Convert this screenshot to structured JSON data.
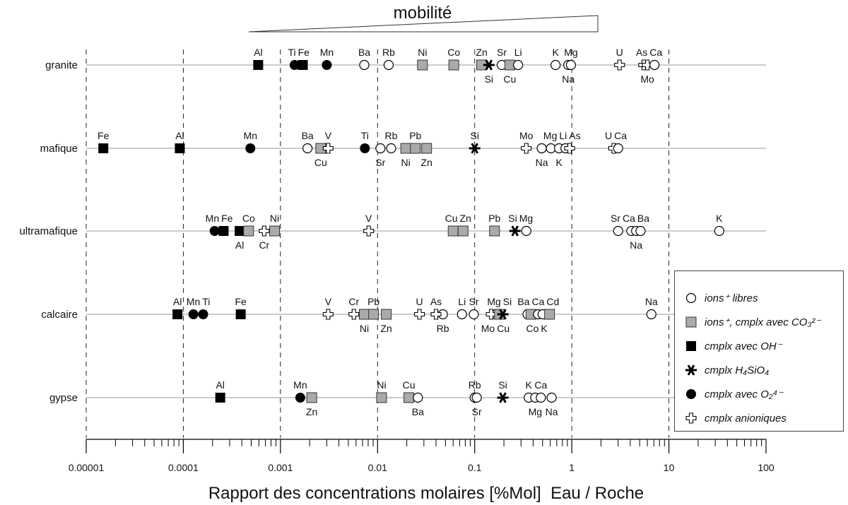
{
  "chart_data": {
    "type": "scatter",
    "title": "mobilité",
    "xlabel": "Rapport des concentrations molaires [%Mol]  Eau / Roche",
    "xscale": "log",
    "xlim": [
      1e-05,
      100
    ],
    "xticks": [
      "0.00001",
      "0.0001",
      "0.001",
      "0.01",
      "0.1",
      "1",
      "10",
      "100"
    ],
    "legend_position": "bottom-right",
    "legend": [
      {
        "type": "ion",
        "label": "ions⁺ libres"
      },
      {
        "type": "co3",
        "label": "ions⁺, cmplx avec CO₃²⁻"
      },
      {
        "type": "oh",
        "label": "cmplx avec OH⁻"
      },
      {
        "type": "si",
        "label": "cmplx H₄SiO₄"
      },
      {
        "type": "o2",
        "label": "cmplx avec O₂⁴⁻"
      },
      {
        "type": "anion",
        "label": "cmplx anioniques"
      }
    ],
    "rows": [
      {
        "name": "granite",
        "points": [
          {
            "el": "Al",
            "t": "oh",
            "v": 0.00059,
            "pos": "a"
          },
          {
            "el": "Ti",
            "t": "o2",
            "v": 0.0014,
            "pos": "a"
          },
          {
            "el": "Fe",
            "t": "oh",
            "v": 0.0017,
            "pos": "a"
          },
          {
            "el": "Mn",
            "t": "o2",
            "v": 0.003,
            "pos": "a"
          },
          {
            "el": "Ba",
            "t": "ion",
            "v": 0.0073,
            "pos": "a"
          },
          {
            "el": "Rb",
            "t": "ion",
            "v": 0.013,
            "pos": "a"
          },
          {
            "el": "Ni",
            "t": "co3",
            "v": 0.029,
            "pos": "a"
          },
          {
            "el": "Co",
            "t": "co3",
            "v": 0.061,
            "pos": "a"
          },
          {
            "el": "Zn",
            "t": "co3",
            "v": 0.118,
            "pos": "a"
          },
          {
            "el": "Si",
            "t": "si",
            "v": 0.14,
            "pos": "b"
          },
          {
            "el": "Sr",
            "t": "ion",
            "v": 0.19,
            "pos": "a"
          },
          {
            "el": "Cu",
            "t": "co3",
            "v": 0.23,
            "pos": "b"
          },
          {
            "el": "Li",
            "t": "ion",
            "v": 0.28,
            "pos": "a"
          },
          {
            "el": "K",
            "t": "ion",
            "v": 0.68,
            "pos": "a"
          },
          {
            "el": "Na",
            "t": "ion",
            "v": 0.92,
            "pos": "b"
          },
          {
            "el": "Mg",
            "t": "ion",
            "v": 0.98,
            "pos": "a"
          },
          {
            "el": "U",
            "t": "anion",
            "v": 3.1,
            "pos": "a"
          },
          {
            "el": "As",
            "t": "anion",
            "v": 5.5,
            "pos": "a"
          },
          {
            "el": "Mo",
            "t": "anion",
            "v": 6.0,
            "pos": "b"
          },
          {
            "el": "Ca",
            "t": "ion",
            "v": 7.1,
            "pos": "a"
          }
        ]
      },
      {
        "name": "mafique",
        "points": [
          {
            "el": "Fe",
            "t": "oh",
            "v": 1.5e-05,
            "pos": "a"
          },
          {
            "el": "Al",
            "t": "oh",
            "v": 9.2e-05,
            "pos": "a"
          },
          {
            "el": "Mn",
            "t": "o2",
            "v": 0.00049,
            "pos": "a"
          },
          {
            "el": "Ba",
            "t": "ion",
            "v": 0.0019,
            "pos": "a"
          },
          {
            "el": "Cu",
            "t": "co3",
            "v": 0.0026,
            "pos": "b"
          },
          {
            "el": "V",
            "t": "anion",
            "v": 0.0031,
            "pos": "a"
          },
          {
            "el": "Ti",
            "t": "o2",
            "v": 0.0074,
            "pos": "a"
          },
          {
            "el": "Sr",
            "t": "ion",
            "v": 0.0107,
            "pos": "b"
          },
          {
            "el": "Rb",
            "t": "ion",
            "v": 0.0138,
            "pos": "a"
          },
          {
            "el": "Ni",
            "t": "co3",
            "v": 0.0195,
            "pos": "b"
          },
          {
            "el": "Pb",
            "t": "co3",
            "v": 0.0245,
            "pos": "a"
          },
          {
            "el": "Zn",
            "t": "co3",
            "v": 0.032,
            "pos": "b"
          },
          {
            "el": "Si",
            "t": "si",
            "v": 0.1,
            "pos": "a"
          },
          {
            "el": "Mo",
            "t": "anion",
            "v": 0.34,
            "pos": "a"
          },
          {
            "el": "Na",
            "t": "ion",
            "v": 0.49,
            "pos": "b"
          },
          {
            "el": "Mg",
            "t": "ion",
            "v": 0.61,
            "pos": "a"
          },
          {
            "el": "K",
            "t": "ion",
            "v": 0.74,
            "pos": "b"
          },
          {
            "el": "Li",
            "t": "ion",
            "v": 0.86,
            "pos": "a"
          },
          {
            "el": "As",
            "t": "anion",
            "v": 0.95,
            "pos": "a"
          },
          {
            "el": "U",
            "t": "anion",
            "v": 2.7,
            "pos": "a"
          },
          {
            "el": "Ca",
            "t": "ion",
            "v": 3.0,
            "pos": "a"
          }
        ]
      },
      {
        "name": "ultramafique",
        "points": [
          {
            "el": "Mn",
            "t": "o2",
            "v": 0.00021,
            "pos": "a"
          },
          {
            "el": "Fe",
            "t": "oh",
            "v": 0.00026,
            "pos": "a"
          },
          {
            "el": "Al",
            "t": "oh",
            "v": 0.00038,
            "pos": "b"
          },
          {
            "el": "Co",
            "t": "co3",
            "v": 0.00047,
            "pos": "a"
          },
          {
            "el": "Cr",
            "t": "anion",
            "v": 0.00068,
            "pos": "b"
          },
          {
            "el": "Ni",
            "t": "co3",
            "v": 0.00087,
            "pos": "a"
          },
          {
            "el": "V",
            "t": "anion",
            "v": 0.0081,
            "pos": "a"
          },
          {
            "el": "Cu",
            "t": "co3",
            "v": 0.06,
            "pos": "a"
          },
          {
            "el": "Zn",
            "t": "co3",
            "v": 0.076,
            "pos": "a"
          },
          {
            "el": "Pb",
            "t": "co3",
            "v": 0.16,
            "pos": "a"
          },
          {
            "el": "Si",
            "t": "si",
            "v": 0.26,
            "pos": "a"
          },
          {
            "el": "Mg",
            "t": "ion",
            "v": 0.34,
            "pos": "a"
          },
          {
            "el": "Sr",
            "t": "ion",
            "v": 3.0,
            "pos": "a"
          },
          {
            "el": "Ca",
            "t": "ion",
            "v": 4.1,
            "pos": "a"
          },
          {
            "el": "Na",
            "t": "ion",
            "v": 4.6,
            "pos": "b"
          },
          {
            "el": "Ba",
            "t": "ion",
            "v": 5.1,
            "pos": "a"
          },
          {
            "el": "K",
            "t": "ion",
            "v": 33,
            "pos": "a"
          }
        ]
      },
      {
        "name": "calcaire",
        "points": [
          {
            "el": "Al",
            "t": "oh",
            "v": 8.7e-05,
            "pos": "a"
          },
          {
            "el": "Mn",
            "t": "o2",
            "v": 0.000127,
            "pos": "a"
          },
          {
            "el": "Ti",
            "t": "o2",
            "v": 0.00016,
            "pos": "a"
          },
          {
            "el": "Fe",
            "t": "oh",
            "v": 0.00039,
            "pos": "a"
          },
          {
            "el": "V",
            "t": "anion",
            "v": 0.0031,
            "pos": "a"
          },
          {
            "el": "Cr",
            "t": "anion",
            "v": 0.0057,
            "pos": "a"
          },
          {
            "el": "Ni",
            "t": "co3",
            "v": 0.0073,
            "pos": "b"
          },
          {
            "el": "Pb",
            "t": "co3",
            "v": 0.0091,
            "pos": "a"
          },
          {
            "el": "Zn",
            "t": "co3",
            "v": 0.0123,
            "pos": "b"
          },
          {
            "el": "U",
            "t": "anion",
            "v": 0.027,
            "pos": "a"
          },
          {
            "el": "Rb",
            "t": "ion",
            "v": 0.047,
            "pos": "b"
          },
          {
            "el": "As",
            "t": "anion",
            "v": 0.04,
            "pos": "a"
          },
          {
            "el": "Li",
            "t": "ion",
            "v": 0.074,
            "pos": "a"
          },
          {
            "el": "Sr",
            "t": "ion",
            "v": 0.098,
            "pos": "a"
          },
          {
            "el": "Mg",
            "t": "ion",
            "v": 0.166,
            "pos": "a"
          },
          {
            "el": "Mo",
            "t": "anion",
            "v": 0.148,
            "pos": "b"
          },
          {
            "el": "Cu",
            "t": "co3",
            "v": 0.18,
            "pos": "b"
          },
          {
            "el": "Si",
            "t": "si",
            "v": 0.195,
            "pos": "a"
          },
          {
            "el": "Ba",
            "t": "ion",
            "v": 0.35,
            "pos": "a"
          },
          {
            "el": "Co",
            "t": "co3",
            "v": 0.38,
            "pos": "b"
          },
          {
            "el": "Ca",
            "t": "ion",
            "v": 0.45,
            "pos": "a"
          },
          {
            "el": "K",
            "t": "ion",
            "v": 0.5,
            "pos": "b"
          },
          {
            "el": "Cd",
            "t": "co3",
            "v": 0.59,
            "pos": "a"
          },
          {
            "el": "Na",
            "t": "ion",
            "v": 6.6,
            "pos": "a"
          }
        ]
      },
      {
        "name": "gypse",
        "points": [
          {
            "el": "Al",
            "t": "oh",
            "v": 0.00024,
            "pos": "a"
          },
          {
            "el": "Mn",
            "t": "o2",
            "v": 0.0016,
            "pos": "a"
          },
          {
            "el": "Zn",
            "t": "co3",
            "v": 0.0021,
            "pos": "b"
          },
          {
            "el": "Ni",
            "t": "co3",
            "v": 0.011,
            "pos": "a"
          },
          {
            "el": "Cu",
            "t": "co3",
            "v": 0.021,
            "pos": "a"
          },
          {
            "el": "Ba",
            "t": "ion",
            "v": 0.026,
            "pos": "b"
          },
          {
            "el": "Rb",
            "t": "ion",
            "v": 0.1,
            "pos": "a"
          },
          {
            "el": "Sr",
            "t": "ion",
            "v": 0.105,
            "pos": "b"
          },
          {
            "el": "Si",
            "t": "si",
            "v": 0.195,
            "pos": "a"
          },
          {
            "el": "K",
            "t": "ion",
            "v": 0.36,
            "pos": "a"
          },
          {
            "el": "Mg",
            "t": "ion",
            "v": 0.42,
            "pos": "b"
          },
          {
            "el": "Ca",
            "t": "ion",
            "v": 0.48,
            "pos": "a"
          },
          {
            "el": "Na",
            "t": "ion",
            "v": 0.62,
            "pos": "b"
          }
        ]
      }
    ]
  },
  "colors": {
    "co3": "#aaaaaa",
    "black": "#000000",
    "line": "#999999"
  }
}
